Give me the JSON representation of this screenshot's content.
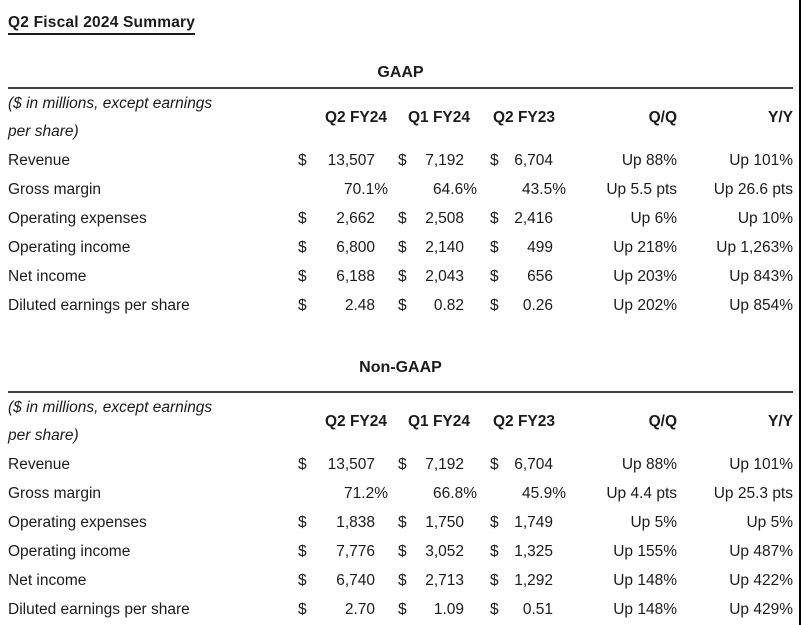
{
  "page": {
    "title": "Q2 Fiscal 2024 Summary"
  },
  "colors": {
    "background": "#ffffff",
    "text": "#1b1b1b",
    "rule": "#404040",
    "right_border": "#000000"
  },
  "tables": [
    {
      "heading": "GAAP",
      "note_line1": "($ in millions, except earnings",
      "note_line2": "per share)",
      "columns": [
        "Q2 FY24",
        "Q1 FY24",
        "Q2 FY23",
        "Q/Q",
        "Y/Y"
      ],
      "rows": [
        {
          "label": "Revenue",
          "q2fy24": {
            "currency": "$",
            "value": "13,507"
          },
          "q1fy24": {
            "currency": "$",
            "value": "7,192"
          },
          "q2fy23": {
            "currency": "$",
            "value": "6,704"
          },
          "qq": "Up 88%",
          "yy": "Up 101%"
        },
        {
          "label": "Gross margin",
          "q2fy24": {
            "currency": "",
            "value": "70.1%"
          },
          "q1fy24": {
            "currency": "",
            "value": "64.6%"
          },
          "q2fy23": {
            "currency": "",
            "value": "43.5%"
          },
          "qq": "Up 5.5 pts",
          "yy": "Up 26.6 pts"
        },
        {
          "label": "Operating expenses",
          "q2fy24": {
            "currency": "$",
            "value": "2,662"
          },
          "q1fy24": {
            "currency": "$",
            "value": "2,508"
          },
          "q2fy23": {
            "currency": "$",
            "value": "2,416"
          },
          "qq": "Up 6%",
          "yy": "Up 10%"
        },
        {
          "label": "Operating income",
          "q2fy24": {
            "currency": "$",
            "value": "6,800"
          },
          "q1fy24": {
            "currency": "$",
            "value": "2,140"
          },
          "q2fy23": {
            "currency": "$",
            "value": "499"
          },
          "qq": "Up 218%",
          "yy": "Up 1,263%"
        },
        {
          "label": "Net income",
          "q2fy24": {
            "currency": "$",
            "value": "6,188"
          },
          "q1fy24": {
            "currency": "$",
            "value": "2,043"
          },
          "q2fy23": {
            "currency": "$",
            "value": "656"
          },
          "qq": "Up 203%",
          "yy": "Up 843%"
        },
        {
          "label": "Diluted earnings per share",
          "q2fy24": {
            "currency": "$",
            "value": "2.48"
          },
          "q1fy24": {
            "currency": "$",
            "value": "0.82"
          },
          "q2fy23": {
            "currency": "$",
            "value": "0.26"
          },
          "qq": "Up 202%",
          "yy": "Up 854%"
        }
      ]
    },
    {
      "heading": "Non-GAAP",
      "note_line1": "($ in millions, except earnings",
      "note_line2": "per share)",
      "columns": [
        "Q2 FY24",
        "Q1 FY24",
        "Q2 FY23",
        "Q/Q",
        "Y/Y"
      ],
      "rows": [
        {
          "label": "Revenue",
          "q2fy24": {
            "currency": "$",
            "value": "13,507"
          },
          "q1fy24": {
            "currency": "$",
            "value": "7,192"
          },
          "q2fy23": {
            "currency": "$",
            "value": "6,704"
          },
          "qq": "Up 88%",
          "yy": "Up 101%"
        },
        {
          "label": "Gross margin",
          "q2fy24": {
            "currency": "",
            "value": "71.2%"
          },
          "q1fy24": {
            "currency": "",
            "value": "66.8%"
          },
          "q2fy23": {
            "currency": "",
            "value": "45.9%"
          },
          "qq": "Up 4.4 pts",
          "yy": "Up 25.3 pts"
        },
        {
          "label": "Operating expenses",
          "q2fy24": {
            "currency": "$",
            "value": "1,838"
          },
          "q1fy24": {
            "currency": "$",
            "value": "1,750"
          },
          "q2fy23": {
            "currency": "$",
            "value": "1,749"
          },
          "qq": "Up 5%",
          "yy": "Up 5%"
        },
        {
          "label": "Operating income",
          "q2fy24": {
            "currency": "$",
            "value": "7,776"
          },
          "q1fy24": {
            "currency": "$",
            "value": "3,052"
          },
          "q2fy23": {
            "currency": "$",
            "value": "1,325"
          },
          "qq": "Up 155%",
          "yy": "Up 487%"
        },
        {
          "label": "Net income",
          "q2fy24": {
            "currency": "$",
            "value": "6,740"
          },
          "q1fy24": {
            "currency": "$",
            "value": "2,713"
          },
          "q2fy23": {
            "currency": "$",
            "value": "1,292"
          },
          "qq": "Up 148%",
          "yy": "Up 422%"
        },
        {
          "label": "Diluted earnings per share",
          "q2fy24": {
            "currency": "$",
            "value": "2.70"
          },
          "q1fy24": {
            "currency": "$",
            "value": "1.09"
          },
          "q2fy23": {
            "currency": "$",
            "value": "0.51"
          },
          "qq": "Up 148%",
          "yy": "Up 429%"
        }
      ]
    }
  ]
}
